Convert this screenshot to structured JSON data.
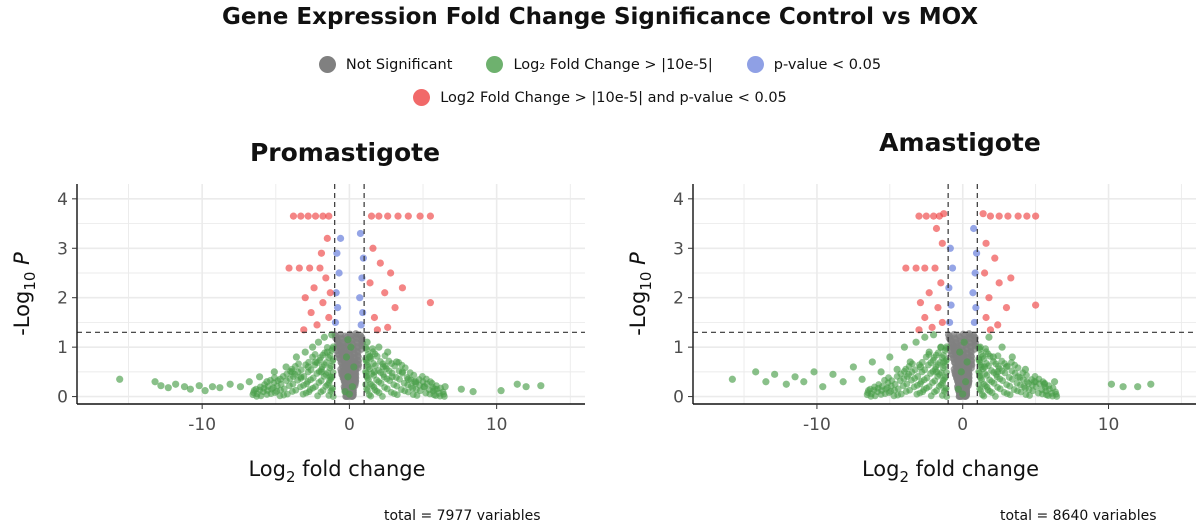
{
  "title": "Gene Expression Fold Change Significance Control vs MOX",
  "legend": [
    {
      "label": "Not Significant",
      "color": "#808080"
    },
    {
      "label": "Log₂ Fold Change > |10e-5|",
      "color": "#4a9e4a"
    },
    {
      "label": "p-value < 0.05",
      "color": "#7b8fe0"
    },
    {
      "label": "Log2 Fold Change > |10e-5| and p-value < 0.05",
      "color": "#ee4444"
    }
  ],
  "chart_data": [
    {
      "type": "scatter",
      "title": "Promastigote",
      "xlabel": "Log2 fold change",
      "ylabel": "-Log10 P",
      "xlim": [
        -18.5,
        16
      ],
      "ylim": [
        -0.15,
        4.3
      ],
      "x_ticks": [
        -10,
        0,
        10
      ],
      "y_ticks": [
        0,
        1,
        2,
        3,
        4
      ],
      "fc_cutoff": 1,
      "p_cutoff": 1.3,
      "total_label": "total = 7977 variables",
      "points": [
        [
          -15.6,
          0.35,
          "ns"
        ],
        [
          -13.2,
          0.3,
          "ns"
        ],
        [
          -12.8,
          0.22,
          "ns"
        ],
        [
          -12.3,
          0.18,
          "ns"
        ],
        [
          -11.8,
          0.25,
          "ns"
        ],
        [
          -11.2,
          0.2,
          "ns"
        ],
        [
          -10.8,
          0.15,
          "ns"
        ],
        [
          -10.2,
          0.22,
          "ns"
        ],
        [
          -9.8,
          0.12,
          "ns"
        ],
        [
          -9.3,
          0.2,
          "ns"
        ],
        [
          -8.8,
          0.18,
          "ns"
        ],
        [
          -8.1,
          0.25,
          "ns"
        ],
        [
          -7.4,
          0.2,
          "ns"
        ],
        [
          -6.8,
          0.3,
          "ns"
        ],
        [
          -6.1,
          0.4,
          "ns"
        ],
        [
          -5.6,
          0.3,
          "ns"
        ],
        [
          -5.1,
          0.5,
          "ns"
        ],
        [
          -4.7,
          0.35,
          "ns"
        ],
        [
          -4.3,
          0.6,
          "ns"
        ],
        [
          -3.9,
          0.5,
          "ns"
        ],
        [
          -3.6,
          0.8,
          "ns"
        ],
        [
          -3.3,
          0.4,
          "ns"
        ],
        [
          -3.0,
          0.9,
          "ns"
        ],
        [
          -2.8,
          0.6,
          "ns"
        ],
        [
          -2.5,
          1.0,
          "ns"
        ],
        [
          -2.3,
          0.7,
          "ns"
        ],
        [
          -2.1,
          1.1,
          "ns"
        ],
        [
          -1.9,
          0.5,
          "ns"
        ],
        [
          -1.7,
          1.2,
          "ns"
        ],
        [
          -1.5,
          0.9,
          "ns"
        ],
        [
          -1.3,
          0.4,
          "ns"
        ],
        [
          -1.2,
          1.25,
          "ns"
        ],
        [
          1.2,
          1.1,
          "ns"
        ],
        [
          1.4,
          0.8,
          "ns"
        ],
        [
          1.7,
          0.5,
          "ns"
        ],
        [
          2.0,
          1.0,
          "ns"
        ],
        [
          2.3,
          0.6,
          "ns"
        ],
        [
          2.6,
          0.9,
          "ns"
        ],
        [
          2.9,
          0.4,
          "ns"
        ],
        [
          3.2,
          0.7,
          "ns"
        ],
        [
          3.6,
          0.5,
          "ns"
        ],
        [
          4.0,
          0.35,
          "ns"
        ],
        [
          4.5,
          0.3,
          "ns"
        ],
        [
          5.1,
          0.2,
          "ns"
        ],
        [
          5.8,
          0.15,
          "ns"
        ],
        [
          6.5,
          0.2,
          "ns"
        ],
        [
          7.6,
          0.15,
          "ns"
        ],
        [
          8.4,
          0.1,
          "ns"
        ],
        [
          10.3,
          0.12,
          "ns"
        ],
        [
          11.4,
          0.25,
          "ns"
        ],
        [
          12.0,
          0.2,
          "ns"
        ],
        [
          13.0,
          0.22,
          "ns"
        ],
        [
          -0.3,
          0.1,
          "ns"
        ],
        [
          0.2,
          0.2,
          "ns"
        ],
        [
          -0.1,
          0.4,
          "ns"
        ],
        [
          0.3,
          0.6,
          "ns"
        ],
        [
          -0.2,
          0.8,
          "ns"
        ],
        [
          0.1,
          1.0,
          "ns"
        ],
        [
          -0.1,
          1.15,
          "ns"
        ],
        [
          0.0,
          0.05,
          "ns"
        ],
        [
          -0.95,
          1.5,
          "p"
        ],
        [
          -0.8,
          1.8,
          "p"
        ],
        [
          -0.9,
          2.1,
          "p"
        ],
        [
          -0.7,
          2.5,
          "p"
        ],
        [
          -0.85,
          2.9,
          "p"
        ],
        [
          -0.6,
          3.2,
          "p"
        ],
        [
          0.8,
          1.45,
          "p"
        ],
        [
          0.9,
          1.7,
          "p"
        ],
        [
          0.7,
          2.0,
          "p"
        ],
        [
          0.85,
          2.4,
          "p"
        ],
        [
          0.95,
          2.8,
          "p"
        ],
        [
          0.75,
          3.3,
          "p"
        ],
        [
          -3.8,
          3.65,
          "sig"
        ],
        [
          -3.3,
          3.65,
          "sig"
        ],
        [
          -2.8,
          3.65,
          "sig"
        ],
        [
          -2.3,
          3.65,
          "sig"
        ],
        [
          -1.8,
          3.65,
          "sig"
        ],
        [
          -1.4,
          3.65,
          "sig"
        ],
        [
          1.5,
          3.65,
          "sig"
        ],
        [
          2.0,
          3.65,
          "sig"
        ],
        [
          2.6,
          3.65,
          "sig"
        ],
        [
          3.3,
          3.65,
          "sig"
        ],
        [
          4.0,
          3.65,
          "sig"
        ],
        [
          4.8,
          3.65,
          "sig"
        ],
        [
          5.5,
          3.65,
          "sig"
        ],
        [
          -1.5,
          3.2,
          "sig"
        ],
        [
          -1.9,
          2.9,
          "sig"
        ],
        [
          -4.1,
          2.6,
          "sig"
        ],
        [
          -3.4,
          2.6,
          "sig"
        ],
        [
          -2.7,
          2.6,
          "sig"
        ],
        [
          -2.0,
          2.6,
          "sig"
        ],
        [
          -1.6,
          2.4,
          "sig"
        ],
        [
          -2.4,
          2.2,
          "sig"
        ],
        [
          -3.0,
          2.0,
          "sig"
        ],
        [
          -1.8,
          1.9,
          "sig"
        ],
        [
          -2.6,
          1.7,
          "sig"
        ],
        [
          -1.4,
          1.6,
          "sig"
        ],
        [
          -2.2,
          1.45,
          "sig"
        ],
        [
          -3.1,
          1.35,
          "sig"
        ],
        [
          -1.3,
          2.1,
          "sig"
        ],
        [
          1.6,
          3.0,
          "sig"
        ],
        [
          2.1,
          2.7,
          "sig"
        ],
        [
          2.8,
          2.5,
          "sig"
        ],
        [
          1.4,
          2.3,
          "sig"
        ],
        [
          2.4,
          2.1,
          "sig"
        ],
        [
          3.1,
          1.8,
          "sig"
        ],
        [
          1.7,
          1.6,
          "sig"
        ],
        [
          2.6,
          1.4,
          "sig"
        ],
        [
          5.5,
          1.9,
          "sig"
        ],
        [
          3.6,
          2.2,
          "sig"
        ],
        [
          1.9,
          1.35,
          "sig"
        ]
      ]
    },
    {
      "type": "scatter",
      "title": "Amastigote",
      "xlabel": "Log2 fold change",
      "ylabel": "-Log10 P",
      "xlim": [
        -18.5,
        16
      ],
      "ylim": [
        -0.15,
        4.3
      ],
      "x_ticks": [
        -10,
        0,
        10
      ],
      "y_ticks": [
        0,
        1,
        2,
        3,
        4
      ],
      "fc_cutoff": 1,
      "p_cutoff": 1.3,
      "total_label": "total = 8640 variables",
      "points": [
        [
          -15.8,
          0.35,
          "ns"
        ],
        [
          -14.2,
          0.5,
          "ns"
        ],
        [
          -13.5,
          0.3,
          "ns"
        ],
        [
          -12.9,
          0.45,
          "ns"
        ],
        [
          -12.1,
          0.25,
          "ns"
        ],
        [
          -11.5,
          0.4,
          "ns"
        ],
        [
          -10.9,
          0.3,
          "ns"
        ],
        [
          -10.2,
          0.5,
          "ns"
        ],
        [
          -9.6,
          0.2,
          "ns"
        ],
        [
          -8.9,
          0.45,
          "ns"
        ],
        [
          -8.2,
          0.3,
          "ns"
        ],
        [
          -7.5,
          0.6,
          "ns"
        ],
        [
          -6.9,
          0.35,
          "ns"
        ],
        [
          -6.2,
          0.7,
          "ns"
        ],
        [
          -5.6,
          0.5,
          "ns"
        ],
        [
          -5.0,
          0.8,
          "ns"
        ],
        [
          -4.5,
          0.55,
          "ns"
        ],
        [
          -4.0,
          1.0,
          "ns"
        ],
        [
          -3.6,
          0.7,
          "ns"
        ],
        [
          -3.2,
          1.1,
          "ns"
        ],
        [
          -2.9,
          0.6,
          "ns"
        ],
        [
          -2.6,
          1.2,
          "ns"
        ],
        [
          -2.3,
          0.9,
          "ns"
        ],
        [
          -2.0,
          1.25,
          "ns"
        ],
        [
          -1.8,
          0.5,
          "ns"
        ],
        [
          -1.5,
          1.0,
          "ns"
        ],
        [
          -1.3,
          0.7,
          "ns"
        ],
        [
          1.2,
          1.0,
          "ns"
        ],
        [
          1.5,
          0.6,
          "ns"
        ],
        [
          1.8,
          1.2,
          "ns"
        ],
        [
          2.1,
          0.8,
          "ns"
        ],
        [
          2.4,
          0.5,
          "ns"
        ],
        [
          2.7,
          1.0,
          "ns"
        ],
        [
          3.0,
          0.6,
          "ns"
        ],
        [
          3.4,
          0.8,
          "ns"
        ],
        [
          3.8,
          0.4,
          "ns"
        ],
        [
          4.3,
          0.55,
          "ns"
        ],
        [
          4.9,
          0.3,
          "ns"
        ],
        [
          5.6,
          0.25,
          "ns"
        ],
        [
          6.3,
          0.3,
          "ns"
        ],
        [
          10.2,
          0.25,
          "ns"
        ],
        [
          11.0,
          0.2,
          "ns"
        ],
        [
          12.0,
          0.2,
          "ns"
        ],
        [
          12.9,
          0.25,
          "ns"
        ],
        [
          -0.3,
          0.15,
          "ns"
        ],
        [
          0.2,
          0.3,
          "ns"
        ],
        [
          -0.1,
          0.5,
          "ns"
        ],
        [
          0.3,
          0.7,
          "ns"
        ],
        [
          -0.2,
          0.9,
          "ns"
        ],
        [
          0.1,
          1.1,
          "ns"
        ],
        [
          0.0,
          0.05,
          "ns"
        ],
        [
          -0.9,
          1.5,
          "p"
        ],
        [
          -0.8,
          1.85,
          "p"
        ],
        [
          -0.95,
          2.2,
          "p"
        ],
        [
          -0.7,
          2.6,
          "p"
        ],
        [
          -0.85,
          3.0,
          "p"
        ],
        [
          0.8,
          1.5,
          "p"
        ],
        [
          0.9,
          1.8,
          "p"
        ],
        [
          0.7,
          2.1,
          "p"
        ],
        [
          0.85,
          2.5,
          "p"
        ],
        [
          0.95,
          2.9,
          "p"
        ],
        [
          0.75,
          3.4,
          "p"
        ],
        [
          -3.0,
          3.65,
          "sig"
        ],
        [
          -2.5,
          3.65,
          "sig"
        ],
        [
          -2.0,
          3.65,
          "sig"
        ],
        [
          -1.6,
          3.65,
          "sig"
        ],
        [
          -1.3,
          3.7,
          "sig"
        ],
        [
          1.4,
          3.7,
          "sig"
        ],
        [
          1.9,
          3.65,
          "sig"
        ],
        [
          2.5,
          3.65,
          "sig"
        ],
        [
          3.1,
          3.65,
          "sig"
        ],
        [
          3.8,
          3.65,
          "sig"
        ],
        [
          4.4,
          3.65,
          "sig"
        ],
        [
          5.0,
          3.65,
          "sig"
        ],
        [
          -1.8,
          3.4,
          "sig"
        ],
        [
          -1.4,
          3.1,
          "sig"
        ],
        [
          -3.9,
          2.6,
          "sig"
        ],
        [
          -3.2,
          2.6,
          "sig"
        ],
        [
          -2.6,
          2.6,
          "sig"
        ],
        [
          -1.9,
          2.6,
          "sig"
        ],
        [
          -1.5,
          2.3,
          "sig"
        ],
        [
          -2.3,
          2.1,
          "sig"
        ],
        [
          -2.9,
          1.9,
          "sig"
        ],
        [
          -1.7,
          1.8,
          "sig"
        ],
        [
          -2.6,
          1.6,
          "sig"
        ],
        [
          -1.4,
          1.5,
          "sig"
        ],
        [
          -2.1,
          1.4,
          "sig"
        ],
        [
          -3.0,
          1.35,
          "sig"
        ],
        [
          1.6,
          3.1,
          "sig"
        ],
        [
          2.2,
          2.8,
          "sig"
        ],
        [
          1.5,
          2.5,
          "sig"
        ],
        [
          2.5,
          2.3,
          "sig"
        ],
        [
          1.8,
          2.0,
          "sig"
        ],
        [
          3.0,
          1.8,
          "sig"
        ],
        [
          1.6,
          1.6,
          "sig"
        ],
        [
          2.4,
          1.45,
          "sig"
        ],
        [
          5.0,
          1.85,
          "sig"
        ],
        [
          3.3,
          2.4,
          "sig"
        ],
        [
          1.9,
          1.35,
          "sig"
        ]
      ]
    }
  ]
}
